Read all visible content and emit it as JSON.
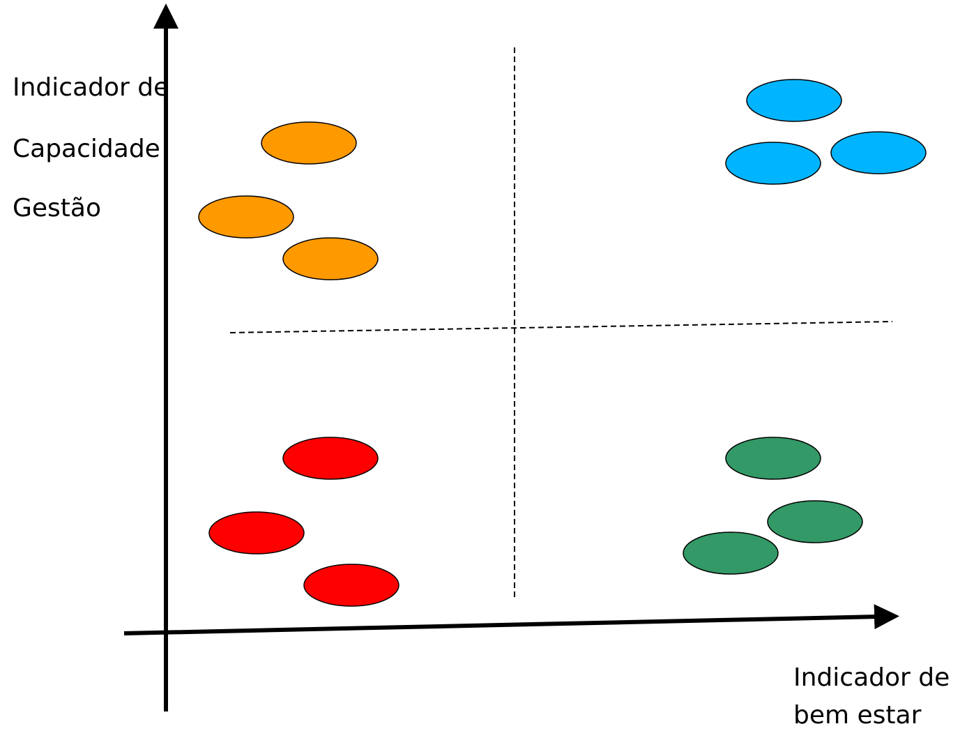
{
  "y_axis_label": {
    "line1": "Indicador de",
    "line2": "Capacidade",
    "line3": "Gestão"
  },
  "x_axis_label": {
    "line1": "Indicador de",
    "line2": "bem estar"
  },
  "colors": {
    "axis": "#000000",
    "divider": "#000000",
    "top_left": "#FF9900",
    "top_right": "#00B4FF",
    "bottom_left": "#FF0000",
    "bottom_right": "#339966"
  },
  "quadrants": [
    {
      "id": "top-left",
      "color_key": "top_left",
      "count": 3
    },
    {
      "id": "top-right",
      "color_key": "top_right",
      "count": 3
    },
    {
      "id": "bottom-left",
      "color_key": "bottom_left",
      "count": 3
    },
    {
      "id": "bottom-right",
      "color_key": "bottom_right",
      "count": 3
    }
  ]
}
